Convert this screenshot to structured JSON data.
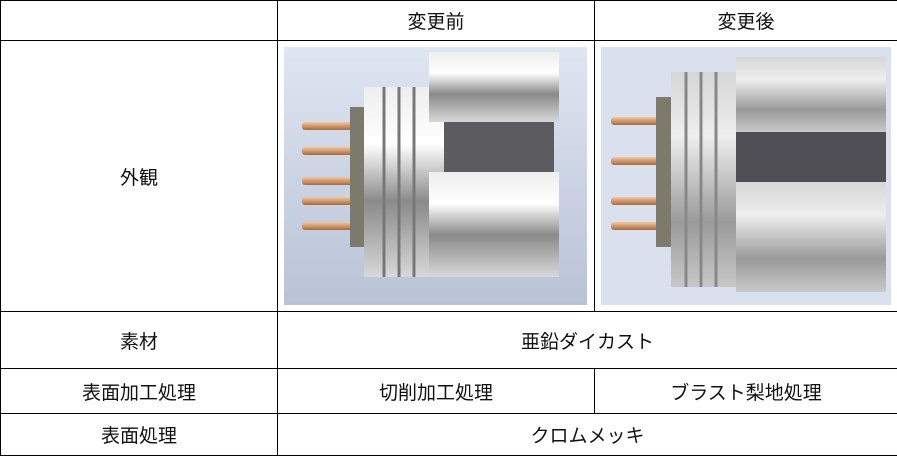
{
  "table": {
    "columns": [
      "変更前",
      "変更後"
    ],
    "rows": [
      {
        "label": "外観"
      },
      {
        "label": "素材",
        "value": "亜鉛ダイカスト"
      },
      {
        "label": "表面加工処理",
        "values": [
          "切削加工処理",
          "ブラスト梨地処理"
        ]
      },
      {
        "label": "表面処理",
        "value": "クロムメッキ"
      }
    ]
  }
}
